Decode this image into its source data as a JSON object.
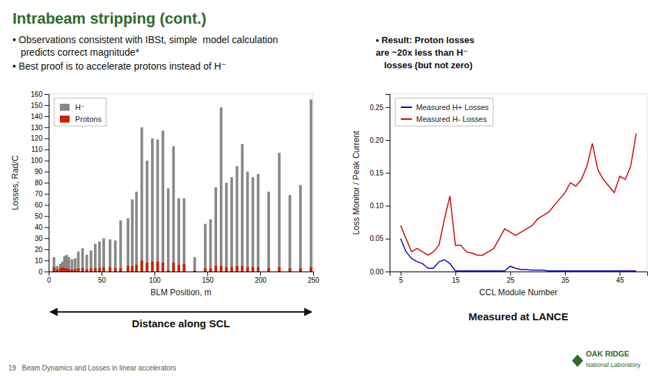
{
  "title": "Intrabeam stripping (cont.)",
  "annotations": [
    "• Observations consistent with IBSt, simple  model calculation",
    "   predicts correct magnitude*",
    "• Best proof is to accelerate protons instead of H⁻",
    "• Result: Proton losses",
    "are ~20x less than H⁻",
    "losses (but not zero)",
    "19   Beam Dynamics and Losses in linear accelerators",
    "OAK RIDGE",
    "National Laboratory"
  ],
  "chart_data": [
    {
      "type": "bar",
      "xlabel": "BLM Position, m",
      "ylabel": "Losses, Rad/C",
      "x": [
        5,
        8,
        11,
        13,
        15,
        17,
        19,
        22,
        25,
        28,
        32,
        36,
        40,
        44,
        48,
        52,
        58,
        63,
        68,
        75,
        79,
        83,
        88,
        93,
        98,
        103,
        108,
        113,
        118,
        123,
        128,
        138,
        148,
        153,
        158,
        163,
        168,
        173,
        178,
        183,
        188,
        193,
        198,
        208,
        218,
        228,
        238,
        248
      ],
      "series": [
        {
          "name": "H⁻",
          "color": "#888888",
          "values": [
            13,
            5,
            7,
            9,
            14,
            15,
            13,
            11,
            12,
            18,
            21,
            15,
            19,
            25,
            27,
            30,
            29,
            28,
            46,
            48,
            65,
            72,
            130,
            100,
            120,
            119,
            127,
            75,
            113,
            66,
            66,
            13,
            43,
            47,
            76,
            148,
            80,
            85,
            95,
            115,
            90,
            85,
            88,
            72,
            107,
            69,
            78,
            155
          ]
        },
        {
          "name": "Protons",
          "color": "#cc2200",
          "values": [
            4,
            2,
            3,
            4,
            3,
            3,
            2,
            2,
            2,
            3,
            3,
            2,
            3,
            3,
            3,
            4,
            4,
            3,
            3,
            5,
            5,
            6,
            10,
            8,
            9,
            9,
            8,
            1,
            8,
            6,
            7,
            1,
            3,
            3,
            5,
            5,
            4,
            4,
            5,
            5,
            4,
            4,
            4,
            3,
            4,
            3,
            3,
            4
          ]
        }
      ],
      "xlim": [
        0,
        250
      ],
      "ylim": [
        0,
        160
      ],
      "xticks": [
        0,
        50,
        100,
        150,
        200,
        250
      ],
      "yticks": [
        0,
        10,
        20,
        30,
        40,
        50,
        60,
        70,
        80,
        90,
        100,
        110,
        120,
        130,
        140,
        150,
        160
      ],
      "stacked": false,
      "legend": "top-left",
      "annotations": [
        "Distance along SCL"
      ]
    },
    {
      "type": "line",
      "xlabel": "CCL Module Number",
      "ylabel": "Loss Monitor / Peak Current",
      "x": [
        5,
        6,
        7,
        8,
        9,
        10,
        11,
        12,
        13,
        14,
        15,
        16,
        17,
        18,
        19,
        20,
        21,
        22,
        23,
        24,
        25,
        26,
        27,
        28,
        29,
        30,
        31,
        32,
        33,
        34,
        35,
        36,
        37,
        38,
        39,
        40,
        41,
        42,
        43,
        44,
        45,
        46,
        47,
        48
      ],
      "series": [
        {
          "name": "Measured H+ Losses",
          "color": "#0000bb",
          "values": [
            0.05,
            0.03,
            0.02,
            0.015,
            0.012,
            0.005,
            0.005,
            0.015,
            0.018,
            0.012,
            0.001,
            0.001,
            0.001,
            0.001,
            0.001,
            0.001,
            0.001,
            0.001,
            0.001,
            0.001,
            0.008,
            0.005,
            0.003,
            0.003,
            0.002,
            0.002,
            0.002,
            0.001,
            0.001,
            0.001,
            0.001,
            0.001,
            0.001,
            0.001,
            0.001,
            0.001,
            0.001,
            0.001,
            0.001,
            0.001,
            0.001,
            0.001,
            0.001,
            0.001
          ]
        },
        {
          "name": "Measured H- Losses",
          "color": "#cc0000",
          "values": [
            0.07,
            0.05,
            0.03,
            0.035,
            0.03,
            0.025,
            0.03,
            0.04,
            0.08,
            0.115,
            0.04,
            0.04,
            0.03,
            0.028,
            0.025,
            0.025,
            0.03,
            0.035,
            0.05,
            0.065,
            0.06,
            0.055,
            0.06,
            0.065,
            0.07,
            0.08,
            0.085,
            0.09,
            0.1,
            0.11,
            0.12,
            0.135,
            0.13,
            0.14,
            0.16,
            0.195,
            0.155,
            0.14,
            0.13,
            0.12,
            0.145,
            0.14,
            0.16,
            0.21
          ]
        }
      ],
      "xlim": [
        3,
        50
      ],
      "ylim": [
        0,
        0.27
      ],
      "xticks": [
        5,
        15,
        25,
        35,
        45
      ],
      "yticks": [
        {
          "value": 0,
          "label": "0.00"
        },
        0.05,
        {
          "value": 0.1,
          "label": "0.10"
        },
        0.15,
        {
          "value": 0.2,
          "label": "0.20"
        },
        0.25
      ],
      "legend": "top-left",
      "annotations": [
        "Measured at LANCE"
      ]
    }
  ]
}
